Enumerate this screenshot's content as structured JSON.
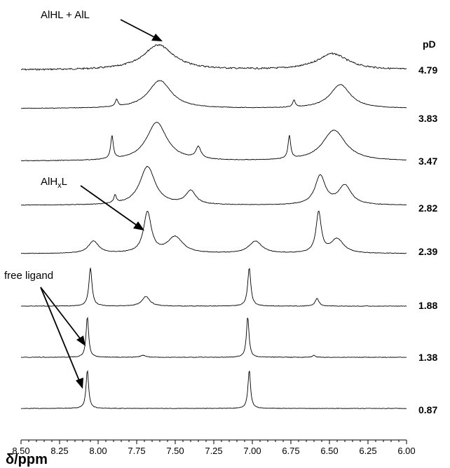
{
  "chart_data": {
    "type": "line",
    "xlabel": "δ/ppm",
    "xlim": [
      8.5,
      6.0
    ],
    "x_reversed": true,
    "x_ticks": [
      "8.50",
      "8.25",
      "8.00",
      "7.75",
      "7.50",
      "7.25",
      "7.00",
      "6.75",
      "6.50",
      "6.25",
      "6.00"
    ],
    "legend_title": "pD",
    "series": [
      {
        "name": "4.79",
        "peaks": [
          {
            "x": 7.61,
            "h": 0.85,
            "w": 0.12
          },
          {
            "x": 6.48,
            "h": 0.55,
            "w": 0.12
          }
        ]
      },
      {
        "name": "3.83",
        "peaks": [
          {
            "x": 7.6,
            "h": 1.0,
            "w": 0.09
          },
          {
            "x": 6.43,
            "h": 0.85,
            "w": 0.08
          },
          {
            "x": 7.88,
            "h": 0.25,
            "w": 0.01
          },
          {
            "x": 6.73,
            "h": 0.25,
            "w": 0.01
          }
        ]
      },
      {
        "name": "3.47",
        "peaks": [
          {
            "x": 7.62,
            "h": 1.0,
            "w": 0.08
          },
          {
            "x": 6.47,
            "h": 0.8,
            "w": 0.09
          },
          {
            "x": 7.91,
            "h": 0.6,
            "w": 0.01
          },
          {
            "x": 6.76,
            "h": 0.6,
            "w": 0.01
          },
          {
            "x": 7.35,
            "h": 0.3,
            "w": 0.02
          }
        ]
      },
      {
        "name": "2.82",
        "peaks": [
          {
            "x": 7.68,
            "h": 1.0,
            "w": 0.06
          },
          {
            "x": 6.56,
            "h": 0.75,
            "w": 0.04
          },
          {
            "x": 6.4,
            "h": 0.5,
            "w": 0.05
          },
          {
            "x": 7.4,
            "h": 0.35,
            "w": 0.04
          },
          {
            "x": 7.89,
            "h": 0.2,
            "w": 0.01
          }
        ]
      },
      {
        "name": "2.39",
        "peaks": [
          {
            "x": 7.68,
            "h": 1.0,
            "w": 0.03
          },
          {
            "x": 6.57,
            "h": 1.0,
            "w": 0.02
          },
          {
            "x": 8.03,
            "h": 0.3,
            "w": 0.04
          },
          {
            "x": 6.98,
            "h": 0.3,
            "w": 0.05
          },
          {
            "x": 6.45,
            "h": 0.35,
            "w": 0.05
          },
          {
            "x": 7.5,
            "h": 0.4,
            "w": 0.06
          }
        ]
      },
      {
        "name": "1.88",
        "peaks": [
          {
            "x": 8.05,
            "h": 1.0,
            "w": 0.012
          },
          {
            "x": 7.02,
            "h": 1.0,
            "w": 0.012
          },
          {
            "x": 7.69,
            "h": 0.25,
            "w": 0.03
          },
          {
            "x": 6.58,
            "h": 0.2,
            "w": 0.015
          }
        ]
      },
      {
        "name": "1.38",
        "peaks": [
          {
            "x": 8.07,
            "h": 1.0,
            "w": 0.01
          },
          {
            "x": 7.03,
            "h": 1.0,
            "w": 0.01
          },
          {
            "x": 7.71,
            "h": 0.05,
            "w": 0.02
          },
          {
            "x": 6.6,
            "h": 0.05,
            "w": 0.01
          }
        ]
      },
      {
        "name": "0.87",
        "peaks": [
          {
            "x": 8.07,
            "h": 1.0,
            "w": 0.01
          },
          {
            "x": 7.02,
            "h": 1.0,
            "w": 0.01
          }
        ]
      }
    ],
    "annotations": [
      {
        "text": "AlHL + AlL",
        "target_x": 7.62,
        "target_trace": "4.79"
      },
      {
        "text_main": "AlH",
        "text_sub": "x",
        "text_tail": "L",
        "target_x": 7.68,
        "target_trace": "2.39"
      },
      {
        "text": "free ligand",
        "target_x": 8.07,
        "target_traces": [
          "1.88",
          "1.38",
          "0.87"
        ]
      }
    ]
  }
}
